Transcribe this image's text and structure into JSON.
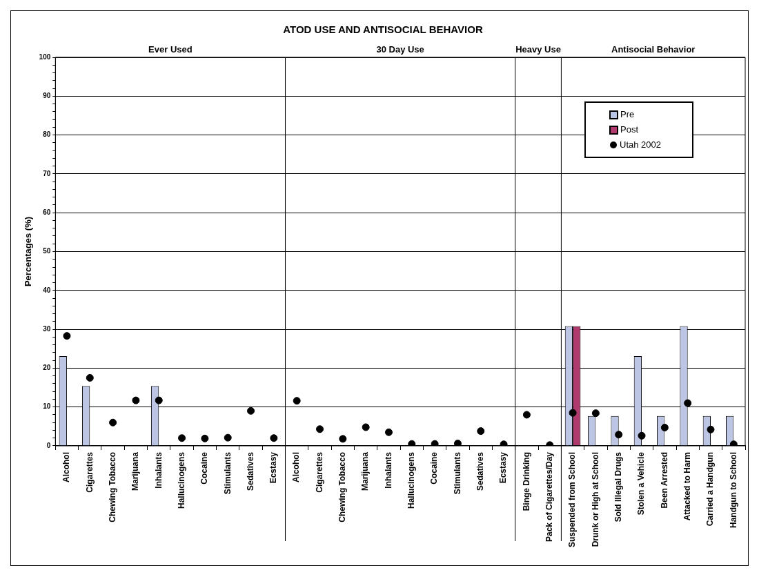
{
  "chart_data": {
    "type": "bar",
    "title": "ATOD USE AND ANTISOCIAL BEHAVIOR",
    "ylabel": "Percentages (%)",
    "categories": [
      "Alcohol",
      "Cigarettes",
      "Chewing Tobacco",
      "Marijuana",
      "Inhalants",
      "Hallucinogens",
      "Cocaine",
      "Stimulants",
      "Sedatives",
      "Ecstasy",
      "Alcohol",
      "Cigarettes",
      "Chewing Tobacco",
      "Marijuana",
      "Inhalants",
      "Hallucinogens",
      "Cocaine",
      "Stimulants",
      "Sedatives",
      "Ecstasy",
      "Binge Drinking",
      "Pack of Cigarettes/Day",
      "Suspended from School",
      "Drunk or High at School",
      "Sold Illegal Drugs",
      "Stolen a Vehicle",
      "Been Arrested",
      "Attacked to Harm",
      "Carried a Handgun",
      "Handgun to School"
    ],
    "series": [
      {
        "name": "Pre",
        "color": "#bcc5e3",
        "values": [
          23.1,
          15.4,
          null,
          null,
          15.4,
          null,
          null,
          null,
          null,
          null,
          null,
          null,
          null,
          null,
          null,
          null,
          null,
          null,
          null,
          null,
          null,
          null,
          30.8,
          7.7,
          7.7,
          23.1,
          7.7,
          30.8,
          7.7,
          7.7
        ]
      },
      {
        "name": "Post",
        "color": "#b03a6e",
        "values": [
          null,
          null,
          null,
          null,
          null,
          null,
          null,
          null,
          null,
          null,
          null,
          null,
          null,
          null,
          null,
          null,
          null,
          null,
          null,
          null,
          null,
          null,
          30.8,
          null,
          null,
          null,
          null,
          null,
          null,
          null
        ]
      },
      {
        "name": "Utah 2002",
        "type": "scatter",
        "color": "#000000",
        "marker": "circle",
        "values": [
          28.3,
          17.5,
          6.0,
          11.7,
          11.7,
          2.0,
          1.9,
          2.1,
          9.0,
          2.0,
          11.6,
          4.3,
          1.8,
          4.8,
          3.5,
          0.5,
          0.5,
          0.6,
          3.8,
          0.4,
          8.0,
          0.2,
          8.5,
          8.4,
          2.9,
          2.6,
          4.7,
          11.0,
          4.2,
          0.4
        ]
      }
    ],
    "ylim": [
      0,
      100
    ],
    "yticks": [
      0,
      {
        "value": 2,
        "label": null
      },
      {
        "value": 4,
        "label": null
      },
      {
        "value": 6,
        "label": null
      },
      {
        "value": 8,
        "label": null
      },
      10,
      {
        "value": 12,
        "label": null
      },
      {
        "value": 14,
        "label": null
      },
      {
        "value": 16,
        "label": null
      },
      {
        "value": 18,
        "label": null
      },
      20,
      {
        "value": 22,
        "label": null
      },
      {
        "value": 24,
        "label": null
      },
      {
        "value": 26,
        "label": null
      },
      {
        "value": 28,
        "label": null
      },
      30,
      {
        "value": 32,
        "label": null
      },
      {
        "value": 34,
        "label": null
      },
      {
        "value": 36,
        "label": null
      },
      {
        "value": 38,
        "label": null
      },
      40,
      {
        "value": 42,
        "label": null
      },
      {
        "value": 44,
        "label": null
      },
      {
        "value": 46,
        "label": null
      },
      {
        "value": 48,
        "label": null
      },
      50,
      {
        "value": 52,
        "label": null
      },
      {
        "value": 54,
        "label": null
      },
      {
        "value": 56,
        "label": null
      },
      {
        "value": 58,
        "label": null
      },
      60,
      {
        "value": 62,
        "label": null
      },
      {
        "value": 64,
        "label": null
      },
      {
        "value": 66,
        "label": null
      },
      {
        "value": 68,
        "label": null
      },
      70,
      {
        "value": 72,
        "label": null
      },
      {
        "value": 74,
        "label": null
      },
      {
        "value": 76,
        "label": null
      },
      {
        "value": 78,
        "label": null
      },
      80,
      {
        "value": 82,
        "label": null
      },
      {
        "value": 84,
        "label": null
      },
      {
        "value": 86,
        "label": null
      },
      {
        "value": 88,
        "label": null
      },
      90,
      {
        "value": 92,
        "label": null
      },
      {
        "value": 94,
        "label": null
      },
      {
        "value": 96,
        "label": null
      },
      {
        "value": 98,
        "label": null
      },
      100
    ],
    "grid": "y",
    "legend": "top right",
    "annotations": [
      "Ever Used",
      "30 Day Use",
      "Heavy Use",
      "Antisocial Behavior"
    ]
  }
}
